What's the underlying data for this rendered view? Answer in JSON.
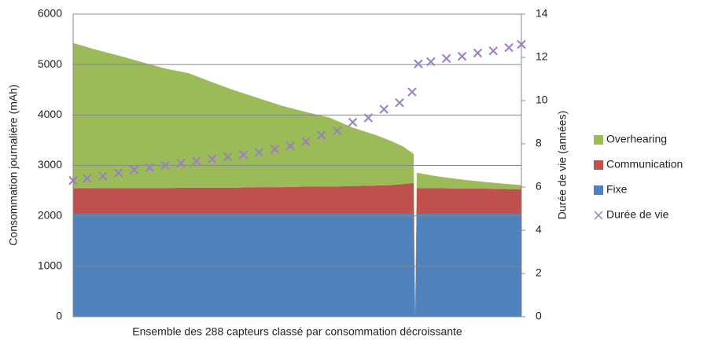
{
  "chart_data": {
    "type": "stacked-area",
    "x_label": "Ensemble des 288 capteurs classé par consommation décroissante",
    "y_label": "Consommation journalière (mAh)",
    "y2_label": "Durée de vie (années)",
    "x": [
      1,
      15,
      30,
      45,
      60,
      75,
      90,
      105,
      120,
      135,
      150,
      165,
      180,
      195,
      205,
      212,
      218,
      219,
      220,
      221,
      222,
      235,
      250,
      265,
      280,
      288
    ],
    "xlim": [
      1,
      288
    ],
    "ylim": [
      0,
      6000
    ],
    "yticks": [
      0,
      1000,
      2000,
      3000,
      4000,
      5000,
      6000
    ],
    "y2lim": [
      0,
      14
    ],
    "y2ticks": [
      0,
      2,
      4,
      6,
      8,
      10,
      12,
      14
    ],
    "grid": true,
    "legend": "right",
    "series": [
      {
        "name": "Fixe",
        "color": "#4f81bd",
        "values": [
          2050,
          2050,
          2050,
          2050,
          2050,
          2050,
          2050,
          2050,
          2050,
          2050,
          2050,
          2050,
          2050,
          2050,
          2050,
          2050,
          2050,
          2050,
          0,
          2050,
          2050,
          2050,
          2050,
          2050,
          2050,
          2050
        ]
      },
      {
        "name": "Communication",
        "color": "#c0504d",
        "values": [
          500,
          500,
          500,
          500,
          500,
          510,
          510,
          510,
          520,
          520,
          530,
          530,
          540,
          550,
          560,
          580,
          600,
          600,
          0,
          500,
          500,
          500,
          490,
          490,
          480,
          480
        ]
      },
      {
        "name": "Overhearing",
        "color": "#9bbb59",
        "values": [
          2880,
          2750,
          2630,
          2500,
          2370,
          2270,
          2090,
          1920,
          1760,
          1610,
          1480,
          1370,
          1160,
          1000,
          870,
          750,
          600,
          580,
          0,
          300,
          300,
          230,
          180,
          130,
          100,
          80
        ]
      },
      {
        "name": "Durée de vie",
        "type": "scatter",
        "axis": "y2",
        "color": "#9b7fc1",
        "x": [
          1,
          10,
          20,
          30,
          40,
          50,
          60,
          70,
          80,
          90,
          100,
          110,
          120,
          130,
          140,
          150,
          160,
          170,
          180,
          190,
          200,
          210,
          218,
          222,
          230,
          240,
          250,
          260,
          270,
          280,
          288
        ],
        "values": [
          6.3,
          6.4,
          6.5,
          6.65,
          6.8,
          6.9,
          7.0,
          7.1,
          7.2,
          7.3,
          7.4,
          7.5,
          7.6,
          7.75,
          7.9,
          8.1,
          8.4,
          8.6,
          9.0,
          9.2,
          9.6,
          9.9,
          10.4,
          11.7,
          11.8,
          11.95,
          12.05,
          12.2,
          12.3,
          12.45,
          12.6
        ]
      }
    ]
  }
}
